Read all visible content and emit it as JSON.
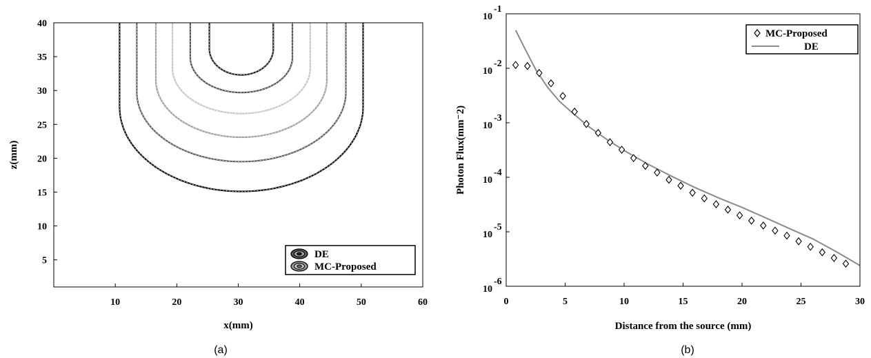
{
  "chart_data": [
    {
      "panel": "(a)",
      "type": "line",
      "subtype": "contour",
      "xlabel": "x(mm)",
      "ylabel": "z(mm)",
      "xlim": [
        0,
        60
      ],
      "ylim": [
        1,
        40
      ],
      "xticks": [
        10,
        20,
        30,
        40,
        50,
        60
      ],
      "yticks": [
        5,
        10,
        15,
        20,
        25,
        30,
        35,
        40
      ],
      "grid": false,
      "legend_position": "bottom-right",
      "center_x": 30.5,
      "series": [
        {
          "name": "DE",
          "style": "solid"
        },
        {
          "name": "MC-Proposed",
          "style": "dotted"
        }
      ],
      "contours": [
        {
          "bottom_z": 32.3,
          "half_width": 5.2,
          "color": "#222222"
        },
        {
          "bottom_z": 29.7,
          "half_width": 8.3,
          "color": "#555555"
        },
        {
          "bottom_z": 26.6,
          "half_width": 11.2,
          "color": "#c8c8c8"
        },
        {
          "bottom_z": 23.1,
          "half_width": 13.9,
          "color": "#a0a0a0"
        },
        {
          "bottom_z": 19.5,
          "half_width": 17.0,
          "color": "#606060"
        },
        {
          "bottom_z": 15.1,
          "half_width": 19.8,
          "color": "#111111"
        }
      ]
    },
    {
      "panel": "(b)",
      "type": "scatter",
      "xlabel": "Distance from the source (mm)",
      "ylabel": "Photon Flux(mm⁻2)",
      "xlim": [
        0,
        30
      ],
      "ylim": [
        1e-06,
        0.1
      ],
      "yscale": "log",
      "xticks": [
        0,
        5,
        10,
        15,
        20,
        25,
        30
      ],
      "yticks": [
        {
          "value": 1e-06,
          "base": "10",
          "exp": "-6"
        },
        {
          "value": 1e-05,
          "base": "10",
          "exp": "-5"
        },
        {
          "value": 0.0001,
          "base": "10",
          "exp": "-4"
        },
        {
          "value": 0.001,
          "base": "10",
          "exp": "-3"
        },
        {
          "value": 0.01,
          "base": "10",
          "exp": "-2"
        },
        {
          "value": 0.1,
          "base": "10",
          "exp": "-1"
        }
      ],
      "grid": false,
      "legend_position": "top-right",
      "series": [
        {
          "name": "MC-Proposed",
          "marker": "diamond",
          "x": [
            0.8,
            1.8,
            2.8,
            3.8,
            4.8,
            5.8,
            6.8,
            7.8,
            8.8,
            9.8,
            10.8,
            11.8,
            12.8,
            13.8,
            14.8,
            15.8,
            16.8,
            17.8,
            18.8,
            19.8,
            20.8,
            21.8,
            22.8,
            23.8,
            24.8,
            25.8,
            26.8,
            27.8,
            28.8
          ],
          "y": [
            0.0115,
            0.011,
            0.0082,
            0.0053,
            0.0031,
            0.0016,
            0.00095,
            0.00065,
            0.00044,
            0.00032,
            0.000225,
            0.000162,
            0.000122,
            9e-05,
            7e-05,
            5.2e-05,
            4.1e-05,
            3.2e-05,
            2.55e-05,
            2e-05,
            1.6e-05,
            1.3e-05,
            1.05e-05,
            8.5e-06,
            6.7e-06,
            5.3e-06,
            4.2e-06,
            3.3e-06,
            2.6e-06
          ]
        },
        {
          "name": "DE",
          "style": "line",
          "color": "#8a8a8a",
          "x": [
            0.8,
            1.5,
            2.5,
            3.5,
            4.5,
            5.5,
            7,
            8.5,
            10,
            12,
            14,
            16,
            18,
            20,
            22,
            24,
            26,
            28,
            30
          ],
          "y": [
            0.05,
            0.025,
            0.0095,
            0.0045,
            0.0025,
            0.0016,
            0.00085,
            0.0005,
            0.00031,
            0.000175,
            0.000105,
            6.5e-05,
            4.2e-05,
            2.8e-05,
            1.8e-05,
            1.15e-05,
            7.4e-06,
            4.3e-06,
            2.4e-06
          ]
        }
      ]
    }
  ]
}
